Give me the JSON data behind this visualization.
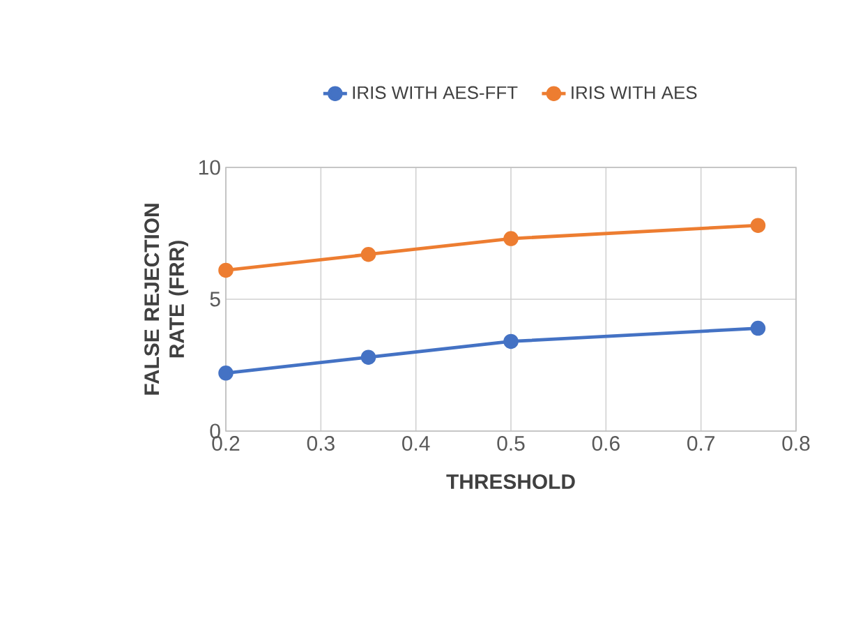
{
  "chart_data": {
    "type": "line",
    "xlabel": "THRESHOLD",
    "ylabel": "FALSE REJECTION RATE (FRR)",
    "x": [
      0.2,
      0.35,
      0.5,
      0.76
    ],
    "series": [
      {
        "name": "IRIS WITH AES-FFT",
        "color": "#4472c4",
        "values": [
          2.2,
          2.8,
          3.4,
          3.9
        ]
      },
      {
        "name": "IRIS WITH AES",
        "color": "#ed7d31",
        "values": [
          6.1,
          6.7,
          7.3,
          7.8
        ]
      }
    ],
    "xlim": [
      0.2,
      0.8
    ],
    "xticks": [
      0.2,
      0.3,
      0.4,
      0.5,
      0.6,
      0.7,
      0.8
    ],
    "ylim": [
      0,
      10
    ],
    "yticks": [
      0,
      5,
      10
    ],
    "grid": true,
    "legend": "top",
    "marker": "circle",
    "line_style": "solid"
  }
}
